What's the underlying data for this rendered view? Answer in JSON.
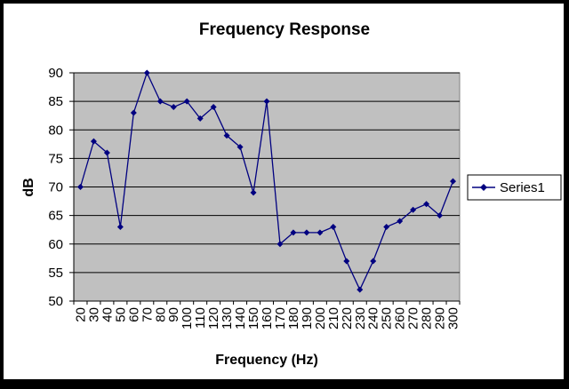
{
  "chart_data": {
    "type": "line",
    "title": "Frequency Response",
    "xlabel": "Frequency (Hz)",
    "ylabel": "dB",
    "ylim": [
      50,
      90
    ],
    "yticks": [
      50,
      55,
      60,
      65,
      70,
      75,
      80,
      85,
      90
    ],
    "grid": true,
    "legend": "right",
    "categories": [
      "20",
      "30",
      "40",
      "50",
      "60",
      "70",
      "80",
      "90",
      "100",
      "110",
      "120",
      "130",
      "140",
      "150",
      "160",
      "170",
      "180",
      "190",
      "200",
      "210",
      "220",
      "230",
      "240",
      "250",
      "260",
      "270",
      "280",
      "290",
      "300"
    ],
    "series": [
      {
        "name": "Series1",
        "values": [
          70,
          78,
          76,
          63,
          83,
          90,
          85,
          84,
          85,
          82,
          84,
          79,
          77,
          69,
          85,
          60,
          62,
          62,
          62,
          63,
          57,
          52,
          57,
          63,
          64,
          66,
          67,
          65,
          71
        ]
      }
    ]
  },
  "colors": {
    "page": "#000000",
    "chart_area": "#ffffff",
    "plot_area": "#c0c0c0",
    "series": "#000080",
    "gridline": "#000000"
  }
}
